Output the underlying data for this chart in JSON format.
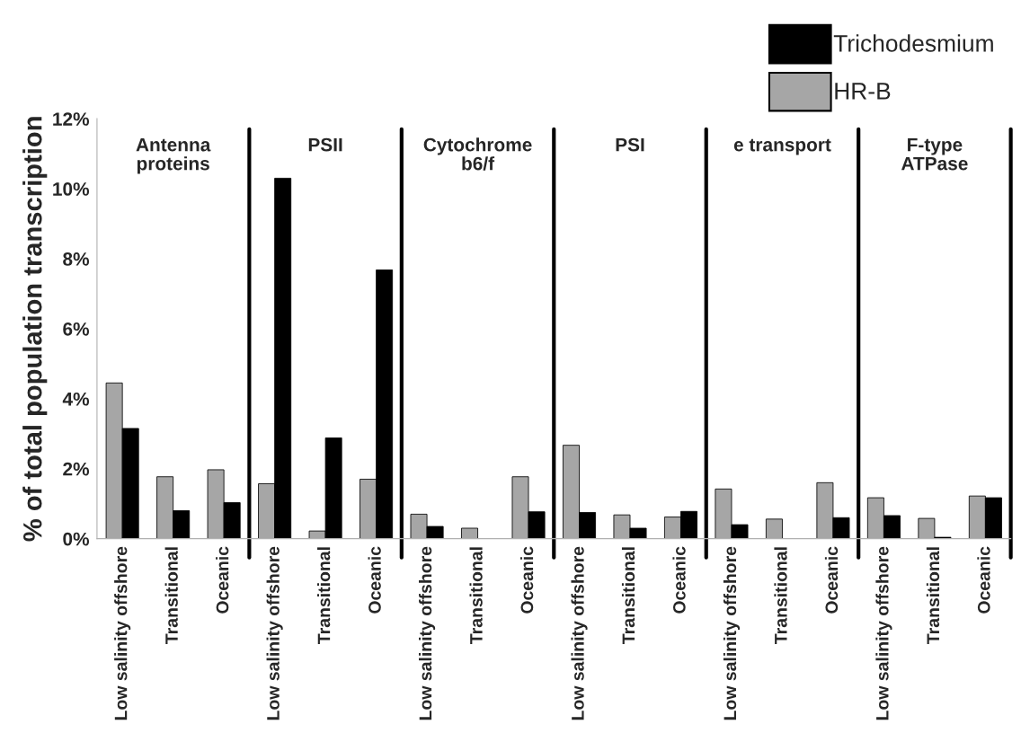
{
  "chart_data": {
    "type": "bar",
    "ylabel": "% of total population transcription",
    "categories": [
      "Low salinity offshore",
      "Transitional",
      "Oceanic",
      "Low salinity offshore",
      "Transitional",
      "Oceanic",
      "Low salinity offshore",
      "Transitional",
      "Oceanic",
      "Low salinity offshore",
      "Transitional",
      "Oceanic",
      "Low salinity offshore",
      "Transitional",
      "Oceanic",
      "Low salinity offshore",
      "Transitional",
      "Oceanic"
    ],
    "series": [
      {
        "name": "HR-B",
        "color": "#a6a6a6",
        "values": [
          4.45,
          1.77,
          1.97,
          1.57,
          0.22,
          1.7,
          0.7,
          0.3,
          1.77,
          2.67,
          0.68,
          0.62,
          1.42,
          0.56,
          1.6,
          1.17,
          0.58,
          1.22
        ]
      },
      {
        "name": "Trichodesmium",
        "color": "#000000",
        "values": [
          3.15,
          0.8,
          1.03,
          10.3,
          2.88,
          7.68,
          0.35,
          0,
          0.77,
          0.75,
          0.3,
          0.78,
          0.4,
          0,
          0.6,
          0.66,
          0.04,
          1.17
        ]
      }
    ],
    "annotations": [
      "Antenna\nproteins",
      "PSII",
      "Cytochrome\nb6/f",
      "PSI",
      "e transport",
      "F-type\nATPase"
    ],
    "ylim": [
      0,
      12
    ],
    "yticks": [
      {
        "value": 0,
        "label": "0%"
      },
      {
        "value": 2,
        "label": "2%"
      },
      {
        "value": 4,
        "label": "4%"
      },
      {
        "value": 6,
        "label": "6%"
      },
      {
        "value": 8,
        "label": "8%"
      },
      {
        "value": 10,
        "label": "10%"
      },
      {
        "value": 12,
        "label": "12%"
      }
    ],
    "grid": false,
    "legend": "top right"
  }
}
